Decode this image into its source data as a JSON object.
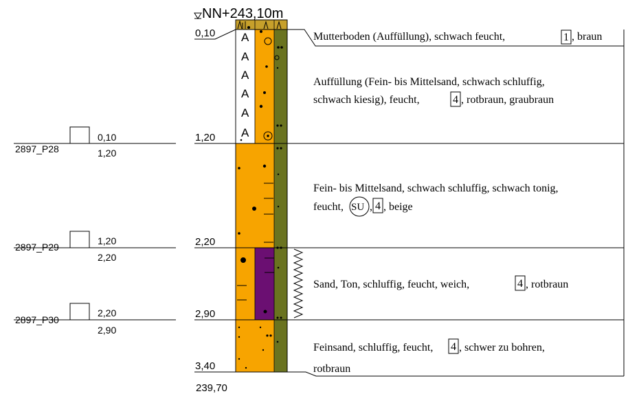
{
  "header": {
    "datum_label": "NN+243,10m"
  },
  "colors": {
    "sand": "#f7a400",
    "olive": "#6a7320",
    "purple": "#6b0f72",
    "topsoil": "#c7a02b",
    "line": "#000000"
  },
  "layers": [
    {
      "bottom_depth": "0,10",
      "description_lines": [
        "Mutterboden (Auffüllung), schwach feucht,",
        "1",
        ", braun"
      ]
    },
    {
      "bottom_depth": "1,20",
      "description_lines": [
        "Auffüllung (Fein- bis Mittelsand, schwach schluffig,",
        "schwach kiesig), feucht,",
        "4",
        ", rotbraun, graubraun"
      ]
    },
    {
      "bottom_depth": "2,20",
      "description_lines": [
        "Fein- bis Mittelsand, schwach schluffig, schwach tonig,",
        "feucht,",
        "SU",
        ",",
        "4",
        ", beige"
      ]
    },
    {
      "bottom_depth": "2,90",
      "description_lines": [
        "Sand, Ton, schluffig, feucht, weich,",
        "4",
        ", rotbraun"
      ]
    },
    {
      "bottom_depth": "3,40",
      "description_lines": [
        "Feinsand, schluffig, feucht,",
        "4",
        ", schwer zu bohren,",
        "rotbraun"
      ]
    }
  ],
  "bottom_elevation": "239,70",
  "samples": [
    {
      "id": "2897_P28",
      "top": "0,10",
      "bottom": "1,20"
    },
    {
      "id": "2897_P29",
      "top": "1,20",
      "bottom": "2,20"
    },
    {
      "id": "2897_P30",
      "top": "2,20",
      "bottom": "2,90"
    }
  ]
}
